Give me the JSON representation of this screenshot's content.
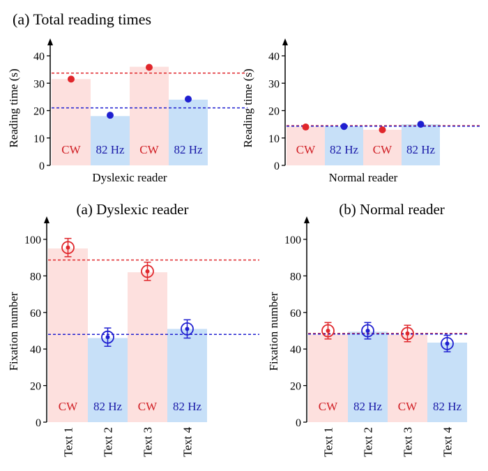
{
  "figure_title": "(a) Total reading times",
  "colors": {
    "cw_bar": "#fde0de",
    "hz_bar": "#c7e0f8",
    "red": "#e0262b",
    "blue": "#1f1fd0",
    "red_text": "#d01e24",
    "blue_text": "#1a1aa8"
  },
  "chart_data": [
    {
      "id": "top-left",
      "type": "bar",
      "title": "",
      "xlabel": "Dyslexic reader",
      "ylabel": "Reading time (s)",
      "ylim": [
        0,
        40
      ],
      "yticks": [
        0,
        10,
        20,
        30,
        40
      ],
      "bar_labels": [
        "CW",
        "82 Hz",
        "CW",
        "82 Hz"
      ],
      "bar_values": [
        31.5,
        18,
        36,
        24
      ],
      "points": [
        31.5,
        18.3,
        35.8,
        24.2
      ],
      "hlines": [
        {
          "color": "red",
          "value": 33.7
        },
        {
          "color": "blue",
          "value": 21
        }
      ],
      "x_tick_labels": []
    },
    {
      "id": "top-right",
      "type": "bar",
      "title": "",
      "xlabel": "Normal reader",
      "ylabel": "Reading time (s)",
      "ylim": [
        0,
        40
      ],
      "yticks": [
        0,
        10,
        20,
        30,
        40
      ],
      "bar_labels": [
        "CW",
        "82 Hz",
        "CW",
        "82 Hz"
      ],
      "bar_values": [
        14.2,
        14.2,
        13,
        15
      ],
      "points": [
        14,
        14.2,
        13,
        15
      ],
      "hlines": [
        {
          "color": "red",
          "value": 14.5
        },
        {
          "color": "blue",
          "value": 14.3
        }
      ],
      "x_tick_labels": []
    },
    {
      "id": "bottom-left",
      "type": "bar",
      "title": "(a) Dyslexic reader",
      "xlabel": "",
      "ylabel": "Fixation number",
      "ylim": [
        0,
        110
      ],
      "yticks": [
        0,
        20,
        40,
        60,
        80,
        100
      ],
      "bar_labels": [
        "CW",
        "82 Hz",
        "CW",
        "82 Hz"
      ],
      "bar_values": [
        95,
        46,
        82,
        51
      ],
      "points": [
        95.5,
        46.5,
        82.5,
        51
      ],
      "errors": [
        5,
        5,
        5,
        5
      ],
      "hlines": [
        {
          "color": "red",
          "value": 88.7
        },
        {
          "color": "blue",
          "value": 48
        }
      ],
      "x_tick_labels": [
        "Text 1",
        "Text 2",
        "Text 3",
        "Text 4"
      ]
    },
    {
      "id": "bottom-right",
      "type": "bar",
      "title": "(b) Normal reader",
      "xlabel": "",
      "ylabel": "Fixation number",
      "ylim": [
        0,
        110
      ],
      "yticks": [
        0,
        20,
        40,
        60,
        80,
        100
      ],
      "bar_labels": [
        "CW",
        "82 Hz",
        "CW",
        "82 Hz"
      ],
      "bar_values": [
        48,
        49.5,
        48,
        43.5
      ],
      "points": [
        50,
        50,
        48.5,
        43
      ],
      "errors": [
        4.5,
        4.5,
        4.5,
        4.5
      ],
      "hlines": [
        {
          "color": "red",
          "value": 48.5
        },
        {
          "color": "blue",
          "value": 48.2
        }
      ],
      "x_tick_labels": [
        "Text 1",
        "Text 2",
        "Text 3",
        "Text 4"
      ]
    }
  ]
}
